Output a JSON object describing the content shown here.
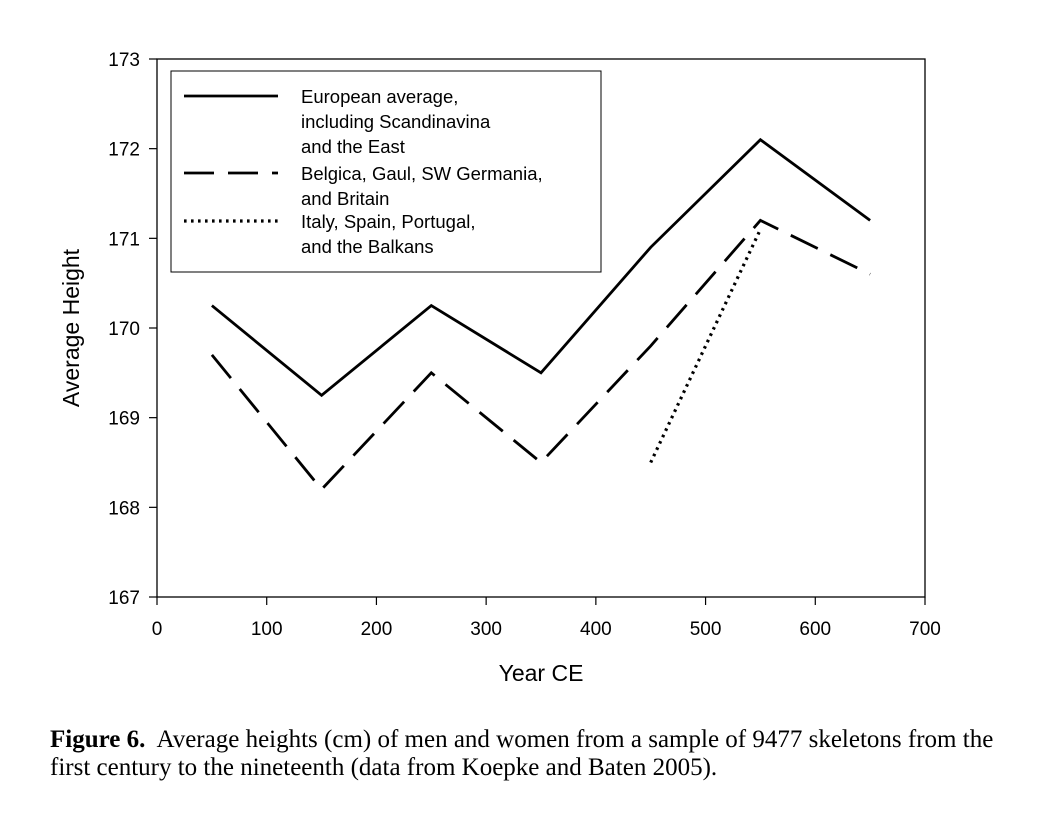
{
  "chart_data": {
    "type": "line",
    "title": "",
    "xlabel": "Year CE",
    "ylabel": "Average Height",
    "xlim": [
      0,
      700
    ],
    "ylim": [
      167,
      173
    ],
    "xticks": [
      0,
      100,
      200,
      300,
      400,
      500,
      600,
      700
    ],
    "yticks": [
      167,
      168,
      169,
      170,
      171,
      172,
      173
    ],
    "grid": false,
    "legend_position": "top-left",
    "series": [
      {
        "name": "European average, including Scandinavina and the East",
        "legend_lines": [
          "European average,",
          "including Scandinavina",
          "and the East"
        ],
        "style": "solid",
        "x": [
          50,
          150,
          250,
          350,
          450,
          550,
          650
        ],
        "values": [
          170.25,
          169.25,
          170.25,
          169.5,
          170.9,
          172.1,
          171.2
        ]
      },
      {
        "name": "Belgica, Gaul, SW Germania, and Britain",
        "legend_lines": [
          "Belgica, Gaul, SW Germania,",
          "and Britain"
        ],
        "style": "dashed",
        "x": [
          50,
          150,
          250,
          350,
          450,
          550,
          650
        ],
        "values": [
          169.7,
          168.2,
          169.5,
          168.5,
          169.8,
          171.2,
          170.6
        ]
      },
      {
        "name": "Italy, Spain, Portugal, and the Balkans",
        "legend_lines": [
          "Italy, Spain, Portugal,",
          "and the Balkans"
        ],
        "style": "dotted",
        "x": [
          450,
          550
        ],
        "values": [
          168.5,
          171.1
        ]
      }
    ]
  },
  "caption": {
    "label": "Figure 6.",
    "text": "Average heights (cm) of men and women from a sample of 9477 skeletons from the first century to the nineteenth (data from Koepke and Baten 2005)."
  }
}
